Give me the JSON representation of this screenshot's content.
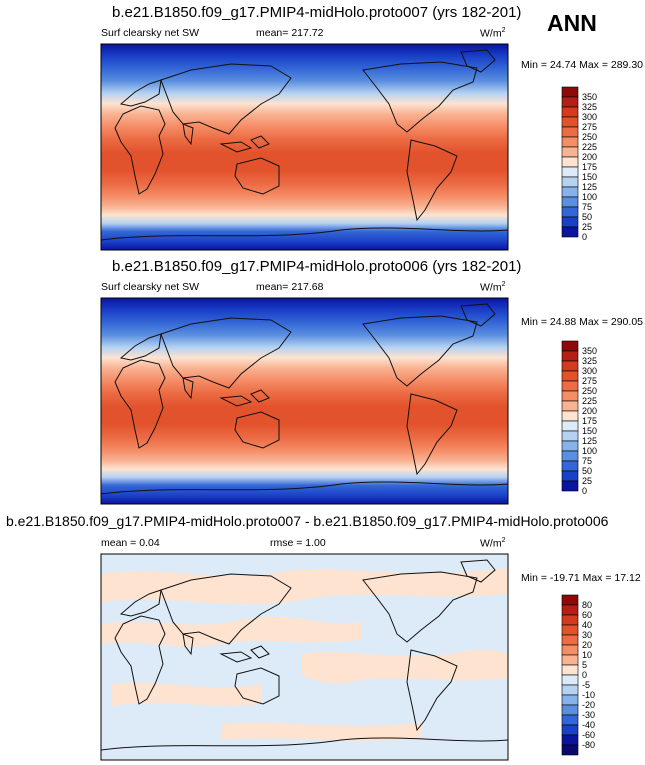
{
  "season": "ANN",
  "panels": [
    {
      "title": "b.e21.B1850.f09_g17.PMIP4-midHolo.proto007 (yrs 182-201)",
      "variable": "Surf clearsky net SW",
      "left_stat": "",
      "center_stat": "mean= 217.72",
      "units": "W/m",
      "units_sup": "2",
      "minmax": "Min =  24.74 Max = 289.30",
      "colorbar": [
        "350",
        "325",
        "300",
        "275",
        "250",
        "225",
        "200",
        "175",
        "150",
        "125",
        "100",
        "75",
        "50",
        "25",
        "0"
      ],
      "colors": [
        "#8c0a0a",
        "#b51e14",
        "#d33a1f",
        "#e2522c",
        "#ec6c44",
        "#f58d67",
        "#f9b393",
        "#fde3d0",
        "#ddebf9",
        "#b6d2f2",
        "#88b3ea",
        "#5b8fdf",
        "#3467d6",
        "#1a40c8",
        "#0a14a0"
      ]
    },
    {
      "title": "b.e21.B1850.f09_g17.PMIP4-midHolo.proto006 (yrs 182-201)",
      "variable": "Surf clearsky net SW",
      "left_stat": "",
      "center_stat": "mean= 217.68",
      "units": "W/m",
      "units_sup": "2",
      "minmax": "Min =  24.88 Max = 290.05",
      "colorbar": [
        "350",
        "325",
        "300",
        "275",
        "250",
        "225",
        "200",
        "175",
        "150",
        "125",
        "100",
        "75",
        "50",
        "25",
        "0"
      ],
      "colors": [
        "#8c0a0a",
        "#b51e14",
        "#d33a1f",
        "#e2522c",
        "#ec6c44",
        "#f58d67",
        "#f9b393",
        "#fde3d0",
        "#ddebf9",
        "#b6d2f2",
        "#88b3ea",
        "#5b8fdf",
        "#3467d6",
        "#1a40c8",
        "#0a14a0"
      ]
    },
    {
      "title": "b.e21.B1850.f09_g17.PMIP4-midHolo.proto007 - b.e21.B1850.f09_g17.PMIP4-midHolo.proto006",
      "variable": "",
      "left_stat": "mean =   0.04",
      "center_stat": "rmse =   1.00",
      "units": "W/m",
      "units_sup": "2",
      "minmax": "Min = -19.71 Max =  17.12",
      "colorbar": [
        "80",
        "60",
        "40",
        "30",
        "20",
        "10",
        "5",
        "0",
        "-5",
        "-10",
        "-20",
        "-30",
        "-40",
        "-60",
        "-80"
      ],
      "colors": [
        "#8c0a0a",
        "#b51e14",
        "#d33a1f",
        "#e2522c",
        "#ec6c44",
        "#f58d67",
        "#f9b393",
        "#fde3d0",
        "#ddebf9",
        "#b6d2f2",
        "#88b3ea",
        "#5b8fdf",
        "#3467d6",
        "#1a40c8",
        "#0a14a0",
        "#0a0a6e"
      ]
    }
  ],
  "chart_data": [
    {
      "type": "heatmap",
      "title": "b.e21.B1850.f09_g17.PMIP4-midHolo.proto007 (yrs 182-201)",
      "variable": "Surf clearsky net SW",
      "mean": 217.72,
      "min": 24.74,
      "max": 289.3,
      "units": "W/m2",
      "contour_levels": [
        0,
        25,
        50,
        75,
        100,
        125,
        150,
        175,
        200,
        225,
        250,
        275,
        300,
        325,
        350
      ]
    },
    {
      "type": "heatmap",
      "title": "b.e21.B1850.f09_g17.PMIP4-midHolo.proto006 (yrs 182-201)",
      "variable": "Surf clearsky net SW",
      "mean": 217.68,
      "min": 24.88,
      "max": 290.05,
      "units": "W/m2",
      "contour_levels": [
        0,
        25,
        50,
        75,
        100,
        125,
        150,
        175,
        200,
        225,
        250,
        275,
        300,
        325,
        350
      ]
    },
    {
      "type": "heatmap",
      "title": "b.e21.B1850.f09_g17.PMIP4-midHolo.proto007 - b.e21.B1850.f09_g17.PMIP4-midHolo.proto006",
      "mean": 0.04,
      "rmse": 1.0,
      "min": -19.71,
      "max": 17.12,
      "units": "W/m2",
      "contour_levels": [
        -80,
        -60,
        -40,
        -30,
        -20,
        -10,
        -5,
        0,
        5,
        10,
        20,
        30,
        40,
        60,
        80
      ]
    }
  ]
}
